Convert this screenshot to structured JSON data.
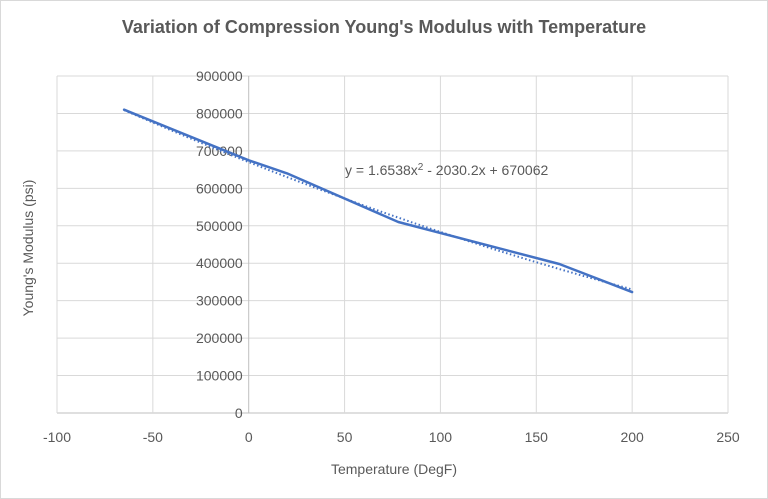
{
  "chart_data": {
    "type": "line",
    "title": "Variation of Compression Young's Modulus with Temperature",
    "xlabel": "Temperature (DegF)",
    "ylabel": "Young's Modulus (psi)",
    "xlim": [
      -100,
      250
    ],
    "ylim": [
      0,
      900000
    ],
    "x_ticks": [
      -100,
      -50,
      0,
      50,
      100,
      150,
      200,
      250
    ],
    "x_tick_labels": [
      "-100",
      "-50",
      "0",
      "50",
      "100",
      "150",
      "200",
      "250"
    ],
    "y_ticks": [
      0,
      100000,
      200000,
      300000,
      400000,
      500000,
      600000,
      700000,
      800000,
      900000
    ],
    "y_tick_labels": [
      "0",
      "100000",
      "200000",
      "300000",
      "400000",
      "500000",
      "600000",
      "700000",
      "800000",
      "900000"
    ],
    "grid": true,
    "series": [
      {
        "name": "Young's Modulus",
        "color": "#4472c4",
        "x": [
          -65,
          0,
          20,
          78,
          162,
          200
        ],
        "y": [
          810000,
          675000,
          640000,
          510000,
          398000,
          323000
        ]
      }
    ],
    "trendline": {
      "type": "polynomial",
      "order": 2,
      "coefficients": [
        1.6538,
        -2030.2,
        670062
      ],
      "x_range": [
        -65,
        200
      ],
      "color": "#4472c4",
      "style": "dotted",
      "equation_prefix": "y = 1.6538x",
      "equation_sup": "2",
      "equation_suffix": " - 2030.2x + 670062"
    },
    "legend": "none"
  }
}
